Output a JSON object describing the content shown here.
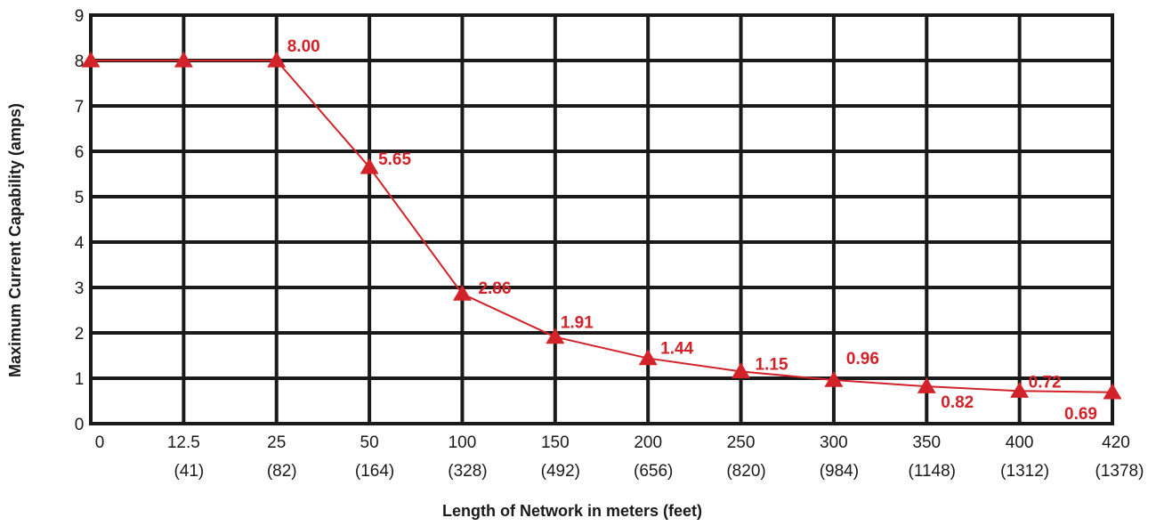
{
  "chart_data": {
    "type": "line",
    "title": "",
    "xlabel": "Length of Network in meters (feet)",
    "ylabel": "Maximum Current Capability (amps)",
    "ylim": [
      0,
      9
    ],
    "yticks": [
      "0",
      "1",
      "2",
      "3",
      "4",
      "5",
      "6",
      "7",
      "8",
      "9"
    ],
    "grid": true,
    "categories": [
      "0",
      "12.5",
      "25",
      "50",
      "100",
      "150",
      "200",
      "250",
      "300",
      "350",
      "400",
      "420"
    ],
    "categories_secondary": [
      "",
      "(41)",
      "(82)",
      "(164)",
      "(328)",
      "(492)",
      "(656)",
      "(820)",
      "(984)",
      "(1148)",
      "(1312)",
      "(1378)"
    ],
    "series": [
      {
        "color": "#d2232a",
        "marker": "triangle",
        "values": [
          8.0,
          8.0,
          8.0,
          5.65,
          2.86,
          1.91,
          1.44,
          1.15,
          0.96,
          0.82,
          0.72,
          0.69
        ],
        "labels": [
          "",
          "",
          "8.00",
          "5.65",
          "2.86",
          "1.91",
          "1.44",
          "1.15",
          "0.96",
          "0.82",
          "0.72",
          "0.69"
        ]
      }
    ]
  }
}
